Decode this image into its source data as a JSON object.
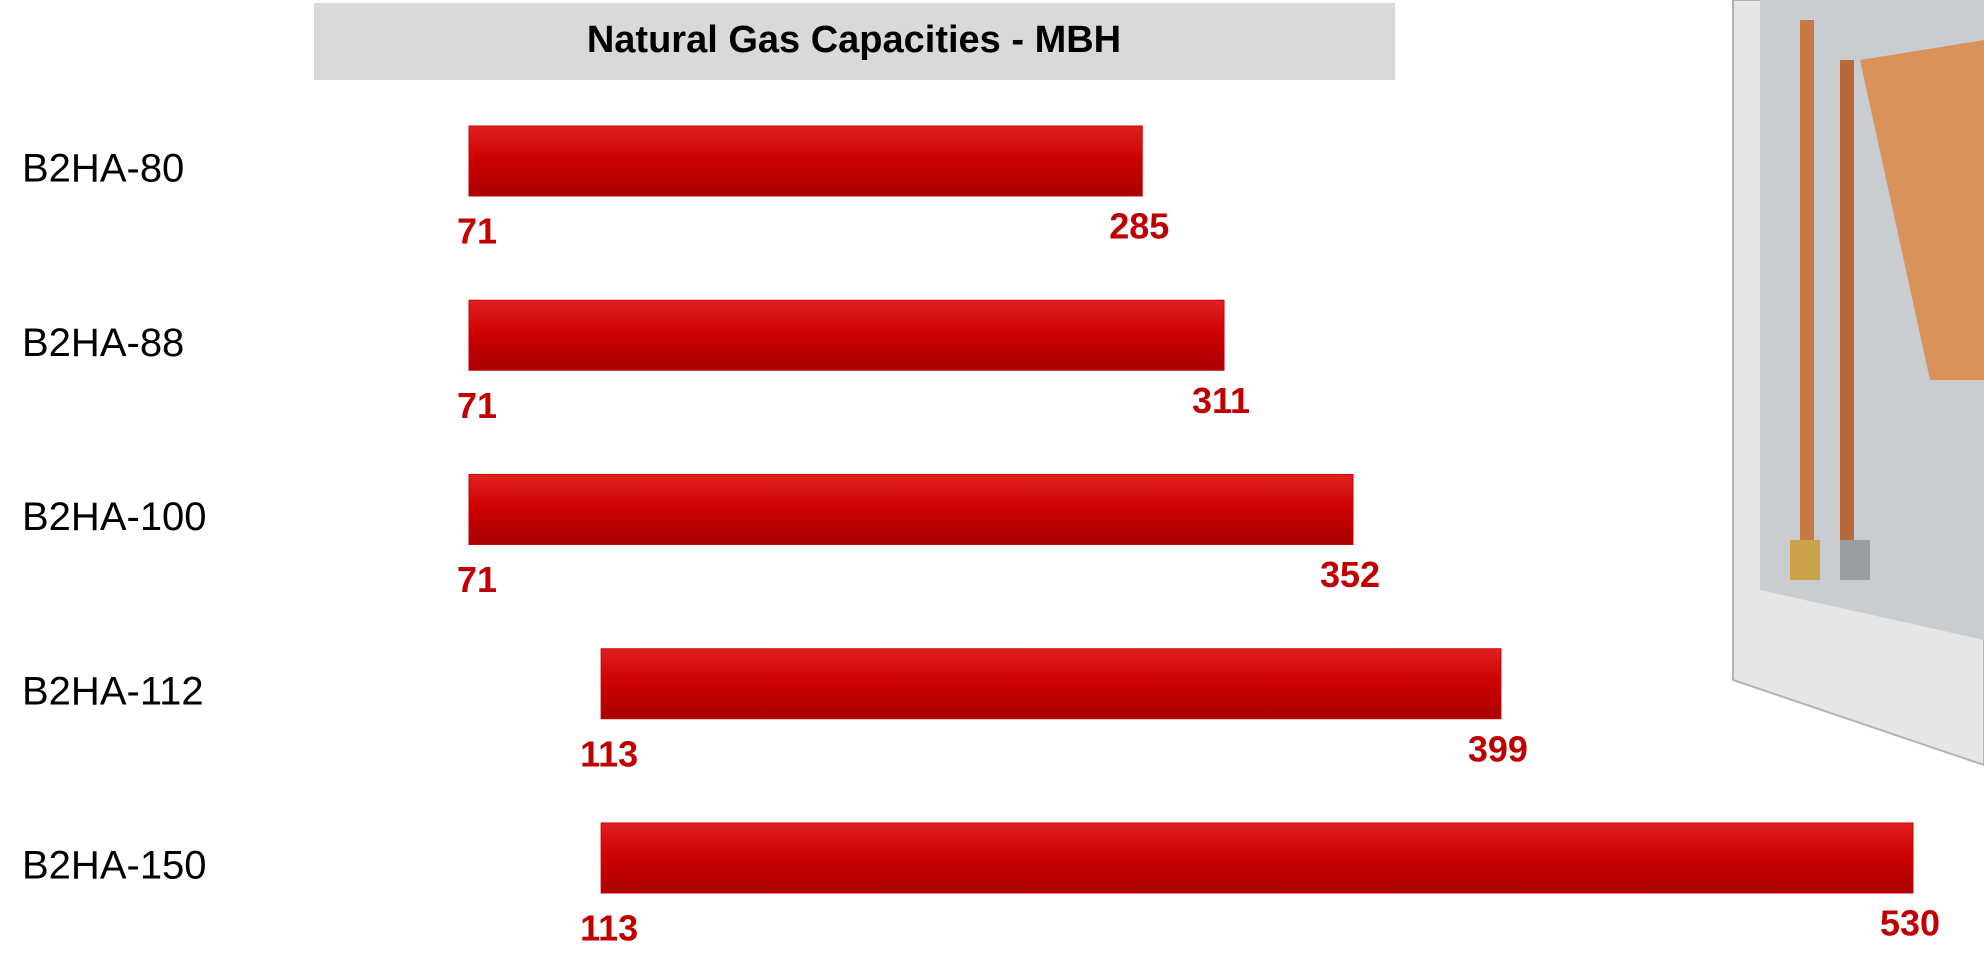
{
  "chart_data": {
    "type": "floating-bar",
    "title": "Natural Gas Capacities -  MBH",
    "categories": [
      "B2HA-80",
      "B2HA-88",
      "B2HA-100",
      "B2HA-112",
      "B2HA-150"
    ],
    "low": [
      71,
      71,
      71,
      113,
      113
    ],
    "high": [
      285,
      311,
      352,
      399,
      530
    ],
    "color": "#cc0000",
    "label_color": "#c00000"
  }
}
